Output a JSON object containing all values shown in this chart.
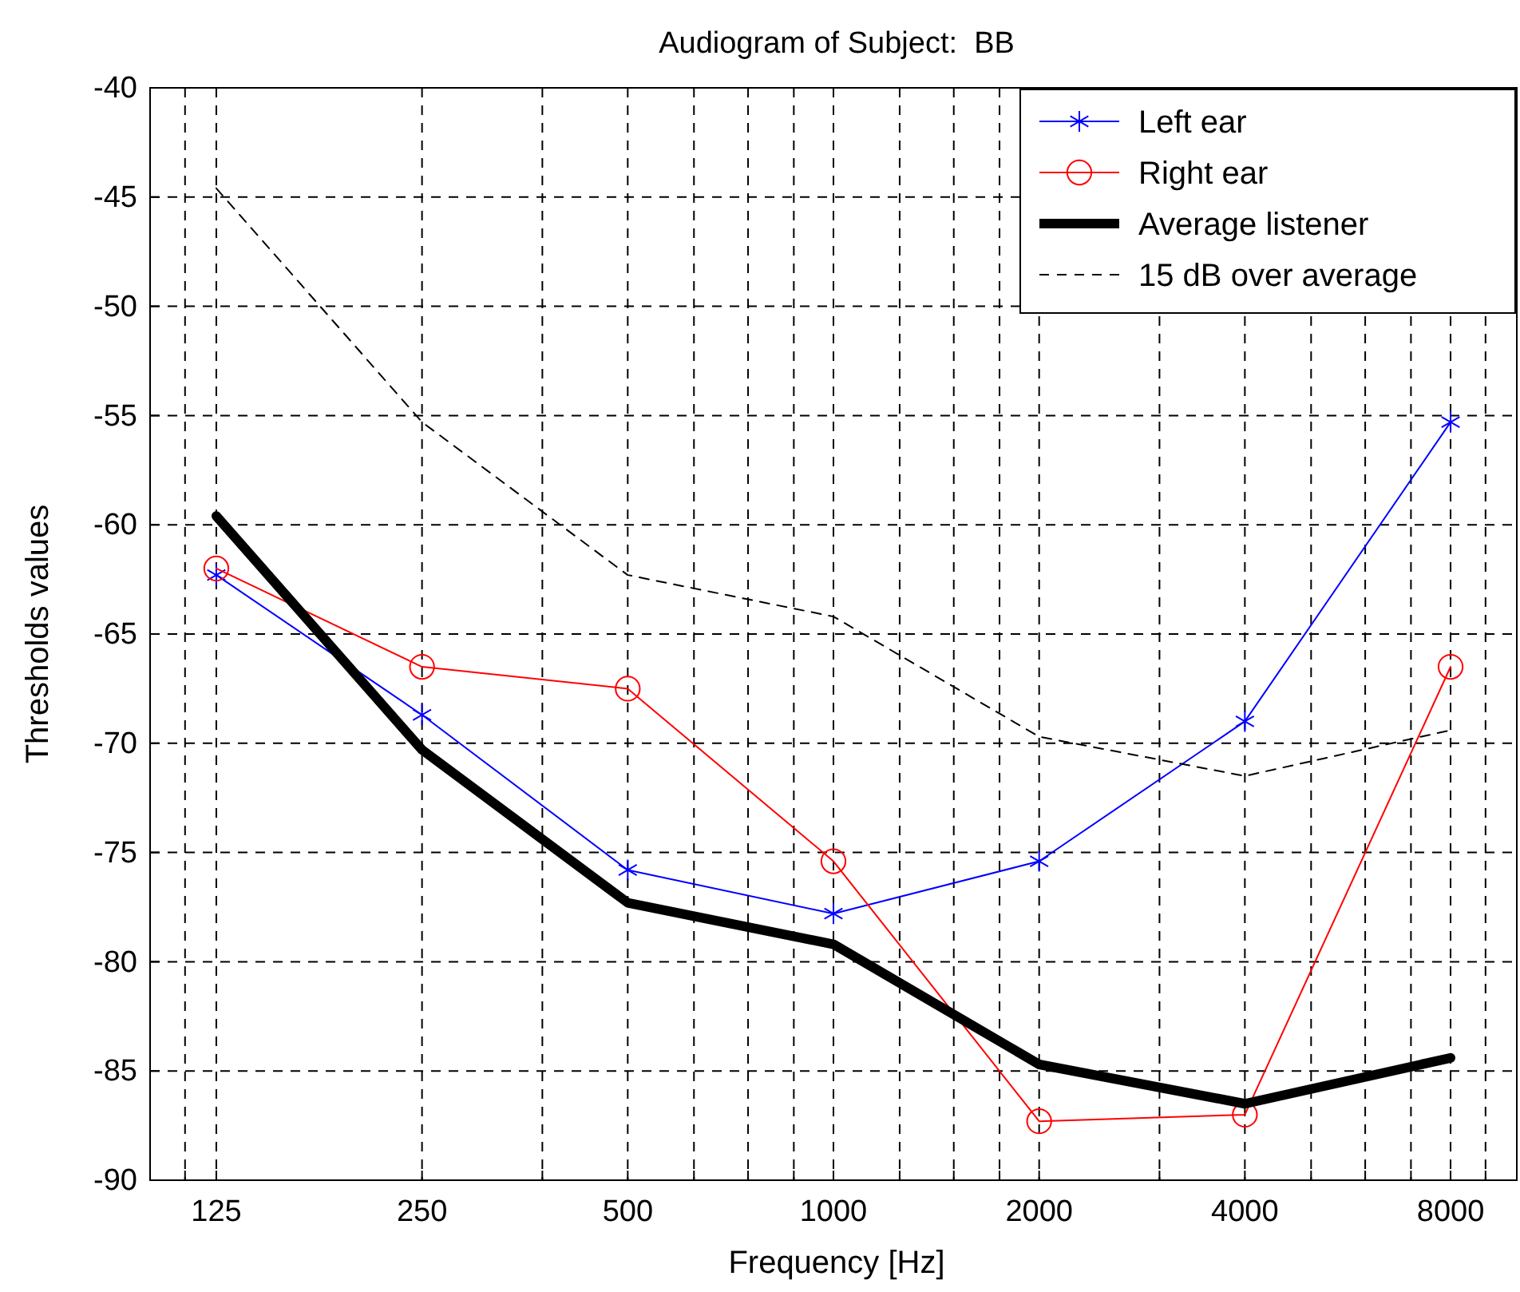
{
  "chart_data": {
    "type": "line",
    "title": "Audiogram of Subject:  BB",
    "xlabel": "Frequency [Hz]",
    "ylabel": "Thresholds values",
    "log": "x",
    "x": [
      125,
      250,
      500,
      1000,
      2000,
      4000,
      8000
    ],
    "xlim": [
      100,
      10000
    ],
    "xticks": [
      {
        "value": 112.5,
        "label": null
      },
      125,
      250,
      {
        "value": 375,
        "label": null
      },
      500,
      {
        "value": 625,
        "label": null
      },
      {
        "value": 750,
        "label": null
      },
      {
        "value": 875,
        "label": null
      },
      1000,
      {
        "value": 1250,
        "label": null
      },
      {
        "value": 1500,
        "label": null
      },
      {
        "value": 1750,
        "label": null
      },
      2000,
      {
        "value": 3000,
        "label": null
      },
      4000,
      {
        "value": 5000,
        "label": null
      },
      {
        "value": 6000,
        "label": null
      },
      {
        "value": 7000,
        "label": null
      },
      8000,
      {
        "value": 9000,
        "label": null
      }
    ],
    "ylim": [
      -90,
      -40
    ],
    "yticks": [
      -90,
      -85,
      -80,
      -75,
      -70,
      -65,
      -60,
      -55,
      -50,
      -45,
      -40
    ],
    "grid": true,
    "legend": "top right",
    "series": [
      {
        "name": "Left ear",
        "color": "#0000ff",
        "marker": "cross",
        "line_style": "solid",
        "values": [
          -62.3,
          -68.7,
          -75.8,
          -77.8,
          -75.4,
          -69,
          -55.3
        ]
      },
      {
        "name": "Right ear",
        "color": "#ff0000",
        "marker": "circle",
        "line_style": "solid",
        "values": [
          -62,
          -66.5,
          -67.5,
          -75.4,
          -87.3,
          -87,
          -66.5
        ]
      },
      {
        "name": "Average listener",
        "color": "#000000",
        "marker": "none",
        "line_style": "solid",
        "values": [
          -59.6,
          -70.3,
          -77.3,
          -79.2,
          -84.7,
          -86.5,
          -84.4
        ]
      },
      {
        "name": "15 dB over average",
        "color": "#000000",
        "marker": "none",
        "line_style": "dashed",
        "values": [
          -44.6,
          -55.3,
          -62.3,
          -64.2,
          -69.7,
          -71.5,
          -69.4
        ]
      }
    ]
  }
}
